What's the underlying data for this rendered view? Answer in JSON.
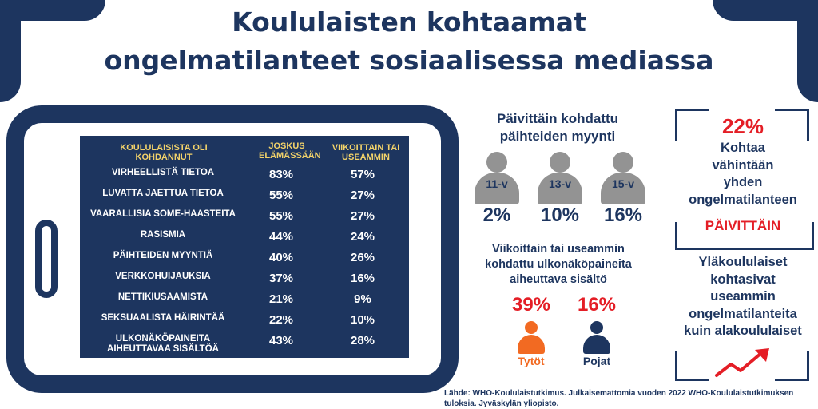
{
  "title": [
    "Koululaisten kohtaamat",
    "ongelmatilanteet sosiaalisessa mediassa"
  ],
  "table": {
    "headers": [
      "KOULULAISISTA OLI KOHDANNUT",
      "JOSKUS ELÄMÄSSÄÄN",
      "VIIKOITTAIN TAI USEAMMIN"
    ],
    "rows": [
      {
        "label": "VIRHEELLISTÄ TIETOA",
        "ever": "83%",
        "weekly": "57%"
      },
      {
        "label": "LUVATTA JAETTUA TIETOA",
        "ever": "55%",
        "weekly": "27%"
      },
      {
        "label": "VAARALLISIA SOME-HAASTEITA",
        "ever": "55%",
        "weekly": "27%"
      },
      {
        "label": "RASISMIA",
        "ever": "44%",
        "weekly": "24%"
      },
      {
        "label": "PÄIHTEIDEN MYYNTIÄ",
        "ever": "40%",
        "weekly": "26%"
      },
      {
        "label": "VERKKOHUIJAUKSIA",
        "ever": "37%",
        "weekly": "16%"
      },
      {
        "label": "NETTIKIUSAAMISTA",
        "ever": "21%",
        "weekly": "9%"
      },
      {
        "label": "SEKSUAALISTA HÄIRINTÄÄ",
        "ever": "22%",
        "weekly": "10%"
      },
      {
        "label": "ULKONÄKÖPAINEITA AIHEUTTAVAA SISÄLTÖÄ",
        "ever": "43%",
        "weekly": "28%"
      }
    ]
  },
  "drugs": {
    "heading": [
      "Päivittäin kohdattu",
      "päihteiden myynti"
    ],
    "groups": [
      {
        "age": "11-v",
        "value": "2%"
      },
      {
        "age": "13-v",
        "value": "10%"
      },
      {
        "age": "15-v",
        "value": "16%"
      }
    ]
  },
  "appearance": {
    "heading": [
      "Viikoittain tai useammin",
      "kohdattu ulkonäköpaineita",
      "aiheuttava sisältö"
    ],
    "girls": {
      "value": "39%",
      "label": "Tytöt"
    },
    "boys": {
      "value": "16%",
      "label": "Pojat"
    }
  },
  "daily": {
    "value": "22%",
    "text": [
      "Kohtaa",
      "vähintään",
      "yhden",
      "ongelmatilanteen"
    ],
    "highlight": "PÄIVITTÄIN"
  },
  "upper": {
    "text": [
      "Yläkoululaiset",
      "kohtasivat",
      "useammin",
      "ongelmatilanteita",
      "kuin alakoululaiset"
    ]
  },
  "source": "Lähde: WHO-Koululaistutkimus. Julkaisemattomia vuoden 2022 WHO-Koululaistutkimuksen tuloksia. Jyväskylän yliopisto.",
  "colors": {
    "navy": "#1d355f",
    "yellow": "#f3d36a",
    "red": "#e41e26",
    "orange": "#f26a22",
    "grey": "#939393"
  }
}
